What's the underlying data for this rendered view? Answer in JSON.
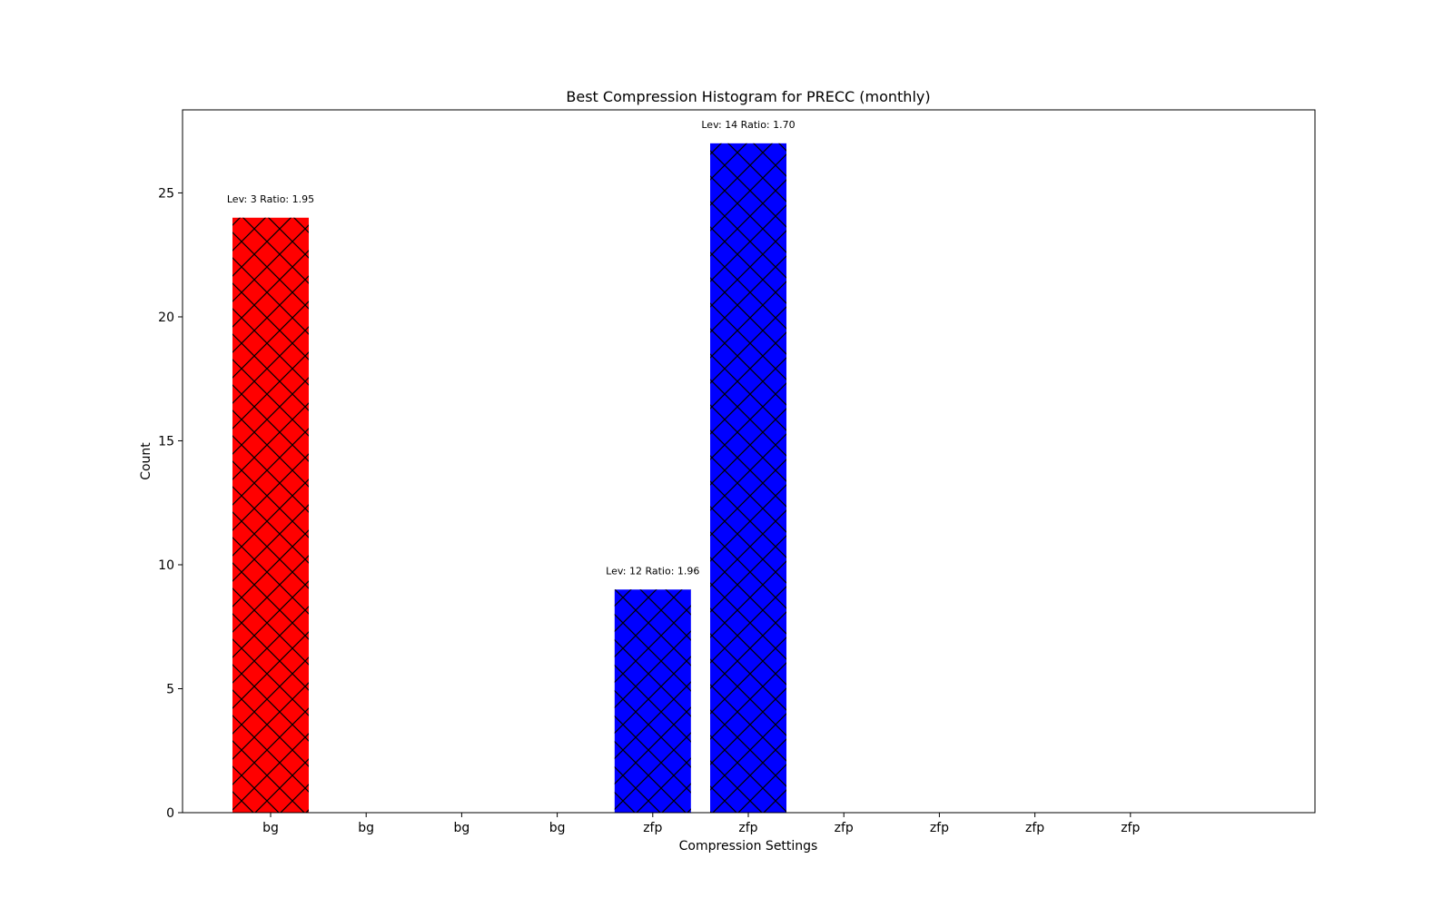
{
  "chart_data": {
    "type": "bar",
    "title": "Best Compression Histogram for PRECC (monthly)",
    "xlabel": "Compression Settings",
    "ylabel": "Count",
    "ylim": [
      0,
      28.35
    ],
    "yticks": [
      0,
      5,
      10,
      15,
      20,
      25
    ],
    "categories": [
      "bg",
      "bg",
      "bg",
      "bg",
      "zfp",
      "zfp",
      "zfp",
      "zfp",
      "zfp",
      "zfp"
    ],
    "values": [
      24,
      0,
      0,
      0,
      9,
      27,
      0,
      0,
      0,
      0
    ],
    "bar_labels": [
      "Lev: 3 Ratio: 1.95",
      "",
      "",
      "",
      "Lev: 12 Ratio: 1.96",
      "Lev: 14 Ratio: 1.70",
      "",
      "",
      "",
      ""
    ],
    "bar_colors": [
      "#ff0000",
      "#ff0000",
      "#ff0000",
      "#ff0000",
      "#0000ff",
      "#0000ff",
      "#0000ff",
      "#0000ff",
      "#0000ff",
      "#0000ff"
    ],
    "hatch": "cross-diagonal",
    "grid": false,
    "legend": false
  }
}
